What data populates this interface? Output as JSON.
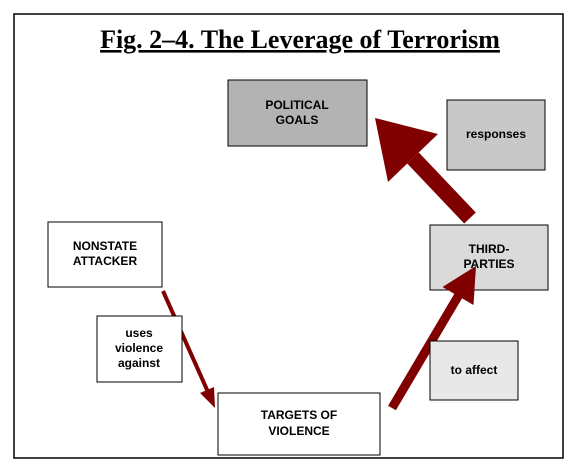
{
  "title": "Fig. 2–4. The Leverage of Terrorism",
  "nodes": [
    {
      "lines": [
        "POLITICAL",
        "GOALS"
      ]
    },
    {
      "lines": [
        "responses"
      ]
    },
    {
      "lines": [
        "NONSTATE",
        "ATTACKER"
      ]
    },
    {
      "lines": [
        "THIRD-",
        "PARTIES"
      ]
    },
    {
      "lines": [
        "uses",
        "violence",
        "against"
      ]
    },
    {
      "lines": [
        "to affect"
      ]
    },
    {
      "lines": [
        "TARGETS OF",
        "VIOLENCE"
      ]
    }
  ]
}
